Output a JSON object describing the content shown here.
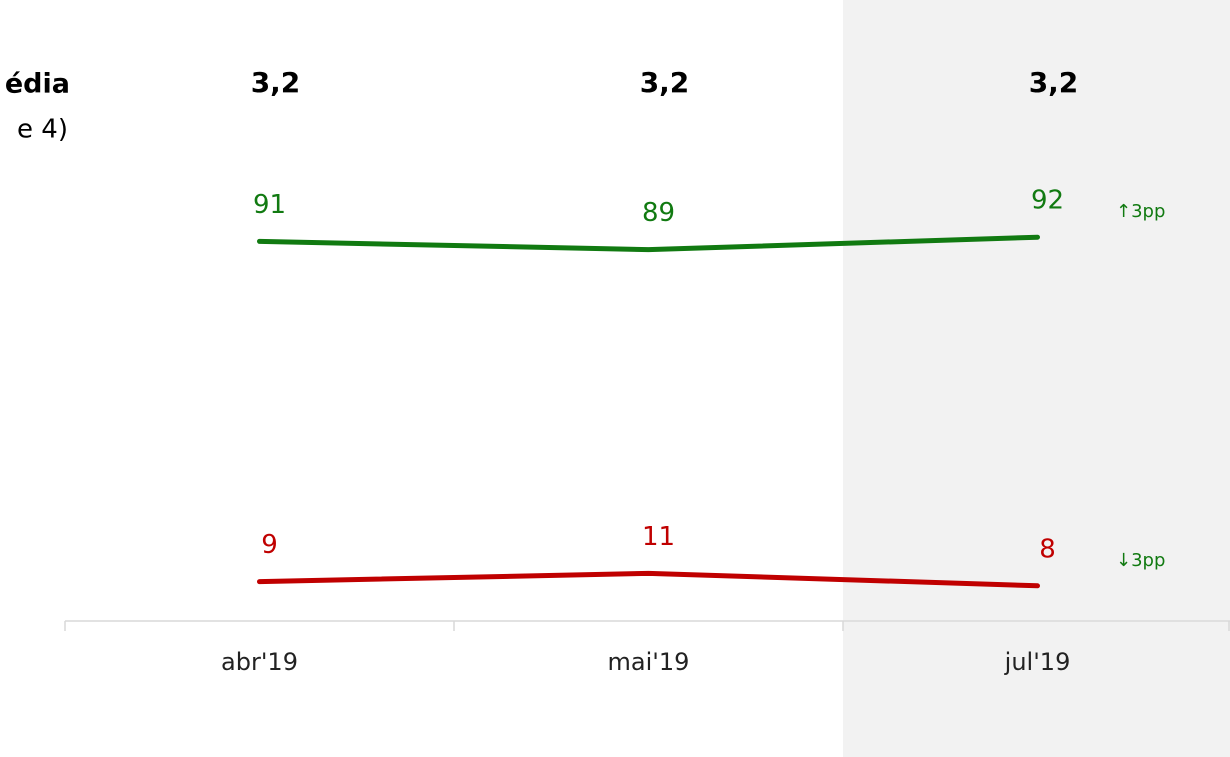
{
  "chart_data": {
    "type": "line",
    "title_fragments": [
      "édia",
      "e 4)"
    ],
    "header_values": [
      "3,2",
      "3,2",
      "3,2"
    ],
    "categories": [
      "abr'19",
      "mai'19",
      "jul'19"
    ],
    "series": [
      {
        "name": null,
        "color": "#117a11",
        "values": [
          91,
          89,
          92
        ]
      },
      {
        "name": null,
        "color": "#c00000",
        "values": [
          9,
          11,
          8
        ]
      }
    ],
    "annotations": [
      "↑3pp",
      "↓3pp"
    ],
    "annotation_color": "#117a11",
    "highlight": "jul'19",
    "ylim": [
      0,
      100
    ]
  }
}
